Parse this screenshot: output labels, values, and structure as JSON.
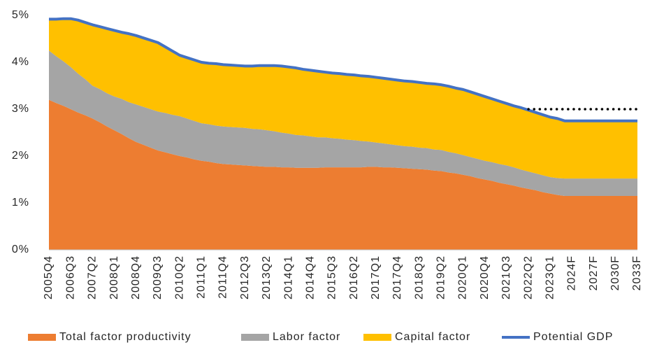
{
  "chart_data": {
    "type": "stacked_area",
    "categories": [
      "2005Q4",
      null,
      null,
      "2006Q3",
      null,
      null,
      "2007Q2",
      null,
      null,
      "2008Q1",
      null,
      null,
      "2008Q4",
      null,
      null,
      "2009Q3",
      null,
      null,
      "2010Q2",
      null,
      null,
      "2011Q1",
      null,
      null,
      "2011Q4",
      null,
      null,
      "2012Q3",
      null,
      null,
      "2013Q2",
      null,
      null,
      "2014Q1",
      null,
      null,
      "2014Q4",
      null,
      null,
      "2015Q3",
      null,
      null,
      "2016Q2",
      null,
      null,
      "2017Q1",
      null,
      null,
      "2017Q4",
      null,
      null,
      "2018Q3",
      null,
      null,
      "2019Q2",
      null,
      null,
      "2020Q1",
      null,
      null,
      "2020Q4",
      null,
      null,
      "2021Q3",
      null,
      null,
      "2022Q2",
      null,
      null,
      "2023Q1",
      null,
      null,
      "2024F",
      null,
      null,
      "2027F",
      null,
      null,
      "2030F",
      null,
      null,
      "2033F"
    ],
    "series": [
      {
        "name": "Total factor productivity",
        "color": "#ed7d31",
        "type": "area",
        "values": [
          3.2,
          3.13,
          3.07,
          3.0,
          2.93,
          2.87,
          2.8,
          2.72,
          2.63,
          2.55,
          2.47,
          2.38,
          2.3,
          2.24,
          2.18,
          2.12,
          2.08,
          2.04,
          2.0,
          1.97,
          1.93,
          1.9,
          1.88,
          1.85,
          1.83,
          1.82,
          1.81,
          1.8,
          1.79,
          1.78,
          1.77,
          1.77,
          1.76,
          1.76,
          1.75,
          1.75,
          1.75,
          1.75,
          1.76,
          1.76,
          1.76,
          1.76,
          1.76,
          1.76,
          1.77,
          1.77,
          1.76,
          1.76,
          1.75,
          1.74,
          1.73,
          1.72,
          1.71,
          1.69,
          1.68,
          1.65,
          1.63,
          1.6,
          1.57,
          1.53,
          1.5,
          1.47,
          1.43,
          1.4,
          1.37,
          1.33,
          1.3,
          1.27,
          1.23,
          1.2,
          1.17,
          1.15,
          1.15,
          1.15,
          1.15,
          1.15,
          1.15,
          1.15,
          1.15,
          1.15,
          1.15,
          1.15
        ]
      },
      {
        "name": "Labor factor",
        "color": "#a5a5a5",
        "type": "area",
        "values": [
          1.05,
          1.0,
          0.95,
          0.9,
          0.83,
          0.77,
          0.7,
          0.71,
          0.71,
          0.72,
          0.75,
          0.77,
          0.8,
          0.81,
          0.82,
          0.83,
          0.84,
          0.84,
          0.85,
          0.83,
          0.82,
          0.8,
          0.8,
          0.8,
          0.8,
          0.8,
          0.8,
          0.8,
          0.79,
          0.79,
          0.78,
          0.76,
          0.74,
          0.72,
          0.7,
          0.69,
          0.67,
          0.65,
          0.64,
          0.62,
          0.61,
          0.59,
          0.58,
          0.56,
          0.54,
          0.52,
          0.51,
          0.49,
          0.48,
          0.47,
          0.47,
          0.46,
          0.46,
          0.45,
          0.45,
          0.44,
          0.43,
          0.42,
          0.41,
          0.41,
          0.4,
          0.4,
          0.4,
          0.4,
          0.39,
          0.38,
          0.37,
          0.36,
          0.36,
          0.35,
          0.36,
          0.37,
          0.37,
          0.37,
          0.37,
          0.37,
          0.37,
          0.37,
          0.37,
          0.37,
          0.37,
          0.37
        ]
      },
      {
        "name": "Capital factor",
        "color": "#ffc000",
        "type": "area",
        "values": [
          0.67,
          0.79,
          0.91,
          1.03,
          1.14,
          1.21,
          1.3,
          1.33,
          1.38,
          1.41,
          1.42,
          1.46,
          1.47,
          1.47,
          1.47,
          1.47,
          1.41,
          1.36,
          1.3,
          1.3,
          1.3,
          1.3,
          1.3,
          1.32,
          1.32,
          1.32,
          1.32,
          1.32,
          1.34,
          1.36,
          1.38,
          1.4,
          1.42,
          1.42,
          1.43,
          1.41,
          1.41,
          1.41,
          1.39,
          1.39,
          1.39,
          1.39,
          1.39,
          1.39,
          1.39,
          1.39,
          1.39,
          1.39,
          1.39,
          1.39,
          1.39,
          1.39,
          1.38,
          1.4,
          1.39,
          1.4,
          1.39,
          1.4,
          1.39,
          1.38,
          1.37,
          1.35,
          1.34,
          1.32,
          1.31,
          1.32,
          1.31,
          1.3,
          1.29,
          1.28,
          1.27,
          1.23,
          1.23,
          1.23,
          1.23,
          1.23,
          1.23,
          1.23,
          1.23,
          1.23,
          1.23,
          1.23
        ]
      },
      {
        "name": "Potential GDP",
        "color": "#4472c4",
        "type": "line",
        "values": [
          4.92,
          4.92,
          4.93,
          4.93,
          4.9,
          4.85,
          4.8,
          4.76,
          4.72,
          4.68,
          4.64,
          4.61,
          4.57,
          4.52,
          4.47,
          4.42,
          4.33,
          4.24,
          4.15,
          4.1,
          4.05,
          4.0,
          3.98,
          3.97,
          3.95,
          3.94,
          3.93,
          3.92,
          3.92,
          3.93,
          3.93,
          3.93,
          3.92,
          3.9,
          3.88,
          3.85,
          3.83,
          3.81,
          3.79,
          3.77,
          3.76,
          3.74,
          3.73,
          3.71,
          3.7,
          3.68,
          3.66,
          3.64,
          3.62,
          3.6,
          3.59,
          3.57,
          3.55,
          3.54,
          3.52,
          3.49,
          3.45,
          3.42,
          3.37,
          3.32,
          3.27,
          3.22,
          3.17,
          3.12,
          3.07,
          3.03,
          2.98,
          2.93,
          2.88,
          2.83,
          2.8,
          2.75,
          2.75,
          2.75,
          2.75,
          2.75,
          2.75,
          2.75,
          2.75,
          2.75,
          2.75,
          2.75
        ]
      }
    ],
    "reference_line": {
      "value": 3,
      "start": "2022Q2",
      "color": "#000000"
    },
    "ylim": [
      0,
      5
    ],
    "yticks": [
      {
        "value": 0,
        "label": "0%"
      },
      {
        "value": 1,
        "label": "1%"
      },
      {
        "value": 2,
        "label": "2%"
      },
      {
        "value": 3,
        "label": "3%"
      },
      {
        "value": 4,
        "label": "4%"
      },
      {
        "value": 5,
        "label": "5%"
      }
    ],
    "legend": "bottom"
  }
}
